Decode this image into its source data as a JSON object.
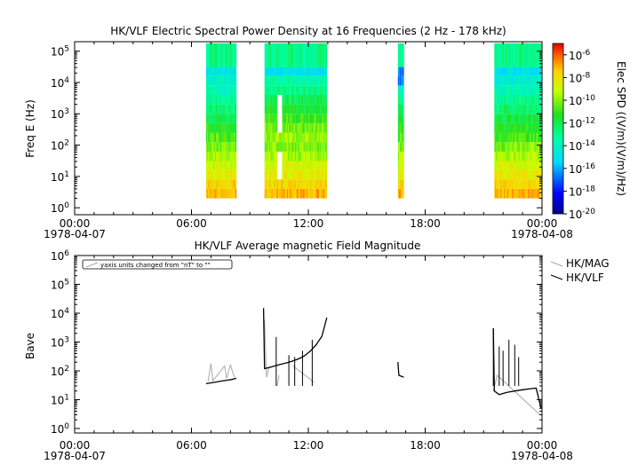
{
  "chart_data": [
    {
      "type": "heatmap",
      "title": "HK/VLF  Electric Spectral Power Density at 16 Frequencies (2 Hz - 178 kHz)",
      "ylabel": "Freq E (Hz)",
      "yscale": "log",
      "ylim": [
        0.6,
        200000
      ],
      "yticks": [
        "10^0",
        "10^1",
        "10^2",
        "10^3",
        "10^4",
        "10^5"
      ],
      "xlim": [
        "1978-04-07 00:00",
        "1978-04-08 00:00"
      ],
      "xticks": [
        {
          "time": "00:00",
          "date": "1978-04-07"
        },
        {
          "time": "06:00",
          "date": ""
        },
        {
          "time": "12:00",
          "date": ""
        },
        {
          "time": "18:00",
          "date": ""
        },
        {
          "time": "00:00",
          "date": "1978-04-08"
        }
      ],
      "colorbar": {
        "label": "Elec SPD ((V/m)(V/m)/Hz)",
        "scale": "log",
        "range": [
          1e-20,
          1e-05
        ],
        "ticks": [
          "10^-6",
          "10^-8",
          "10^-10",
          "10^-12",
          "10^-14",
          "10^-16",
          "10^-18",
          "10^-20"
        ]
      },
      "data_intervals_hours": [
        [
          6.75,
          8.3
        ],
        [
          9.75,
          12.95
        ],
        [
          16.6,
          16.9
        ],
        [
          21.55,
          23.95
        ]
      ],
      "gap_intervals_hours": [
        [
          10.4,
          10.65
        ]
      ],
      "frequency_bands_hz": [
        2,
        4,
        8,
        16,
        31,
        62,
        125,
        250,
        500,
        1000,
        2000,
        4000,
        8000,
        16000,
        31000,
        178000
      ]
    },
    {
      "type": "line",
      "title": "HK/VLF  Average magnetic Field Magnitude",
      "ylabel": "Bave",
      "yscale": "log",
      "ylim": [
        0.7,
        1000000
      ],
      "yticks": [
        "10^0",
        "10^1",
        "10^2",
        "10^3",
        "10^4",
        "10^5",
        "10^6"
      ],
      "xticks": [
        {
          "time": "00:00",
          "date": "1978-04-07"
        },
        {
          "time": "06:00",
          "date": ""
        },
        {
          "time": "12:00",
          "date": ""
        },
        {
          "time": "18:00",
          "date": ""
        },
        {
          "time": "00:00",
          "date": "1978-04-08"
        }
      ],
      "annotation": "yaxis units changed from \"nT\" to \"\"",
      "legend_position": "right",
      "series": [
        {
          "name": "HK/MAG",
          "color": "#aaaaaa",
          "segments": [
            [
              [
                6.85,
                42
              ],
              [
                7.0,
                180
              ],
              [
                7.1,
                45
              ],
              [
                7.7,
                150
              ],
              [
                7.8,
                55
              ],
              [
                8.0,
                160
              ],
              [
                8.2,
                60
              ]
            ],
            [
              [
                9.75,
                6000
              ],
              [
                9.85,
                60
              ],
              [
                10.0,
                150
              ]
            ],
            [
              [
                10.4,
                30
              ],
              [
                10.5,
                70
              ]
            ],
            [
              [
                11.2,
                150
              ],
              [
                12.3,
                40
              ]
            ],
            [
              [
                21.5,
                20
              ],
              [
                21.7,
                70
              ],
              [
                23.9,
                3
              ]
            ]
          ]
        },
        {
          "name": "HK/VLF",
          "color": "#000000",
          "segments": [
            [
              [
                6.75,
                36
              ],
              [
                7.2,
                40
              ],
              [
                7.5,
                44
              ],
              [
                7.8,
                47
              ],
              [
                8.05,
                50
              ],
              [
                8.3,
                55
              ]
            ],
            [
              [
                9.7,
                15000
              ],
              [
                9.75,
                120
              ],
              [
                10.0,
                130
              ],
              [
                10.3,
                150
              ],
              [
                10.6,
                170
              ],
              [
                10.9,
                190
              ],
              [
                11.2,
                220
              ],
              [
                11.5,
                260
              ],
              [
                11.8,
                330
              ],
              [
                12.1,
                480
              ],
              [
                12.4,
                800
              ],
              [
                12.7,
                1600
              ],
              [
                12.95,
                7000
              ]
            ],
            [
              [
                16.6,
                200
              ],
              [
                16.65,
                70
              ],
              [
                16.9,
                60
              ]
            ],
            [
              [
                21.5,
                3000
              ],
              [
                21.55,
                20
              ],
              [
                21.8,
                15
              ],
              [
                22.2,
                18
              ],
              [
                22.6,
                20
              ],
              [
                23.0,
                22
              ],
              [
                23.4,
                24
              ],
              [
                23.7,
                25
              ],
              [
                23.95,
                5
              ]
            ]
          ],
          "spikes": [
            [
              10.35,
              1500
            ],
            [
              11.0,
              350
            ],
            [
              11.3,
              300
            ],
            [
              11.7,
              500
            ],
            [
              12.2,
              1200
            ],
            [
              21.5,
              3000
            ],
            [
              21.8,
              700
            ],
            [
              22.0,
              500
            ],
            [
              22.3,
              1200
            ],
            [
              22.6,
              800
            ],
            [
              22.8,
              300
            ]
          ]
        }
      ]
    }
  ]
}
